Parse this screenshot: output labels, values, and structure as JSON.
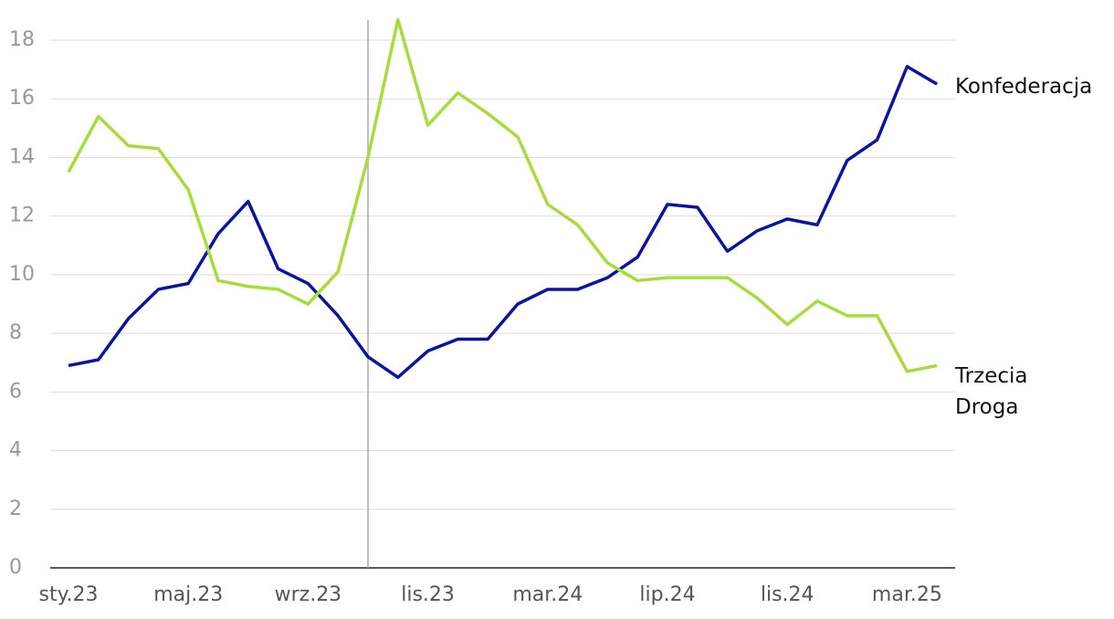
{
  "chart_data": {
    "type": "line",
    "categories": [
      "sty.23",
      null,
      null,
      null,
      "maj.23",
      null,
      null,
      null,
      "wrz.23",
      null,
      null,
      null,
      "lis.23",
      null,
      null,
      null,
      "mar.24",
      null,
      null,
      null,
      "lip.24",
      null,
      null,
      null,
      "lis.24",
      null,
      null,
      null,
      "mar.25",
      null
    ],
    "series": [
      {
        "name": "Konfederacja",
        "color": "#0a14a0",
        "values": [
          6.9,
          7.1,
          8.5,
          9.5,
          9.7,
          11.4,
          12.5,
          10.2,
          9.7,
          8.6,
          7.2,
          6.5,
          7.4,
          7.8,
          7.8,
          9.0,
          9.5,
          9.5,
          9.9,
          10.6,
          12.4,
          12.3,
          10.8,
          11.5,
          11.9,
          11.7,
          13.9,
          14.6,
          17.1,
          16.5
        ]
      },
      {
        "name": "Trzecia Droga",
        "color": "#a8dc3c",
        "values": [
          13.5,
          15.4,
          14.4,
          14.3,
          12.9,
          9.8,
          9.6,
          9.5,
          9.0,
          10.1,
          14.0,
          18.7,
          15.1,
          16.2,
          15.5,
          14.7,
          12.4,
          11.7,
          10.4,
          9.8,
          9.9,
          9.9,
          9.9,
          9.2,
          8.3,
          9.1,
          8.6,
          8.6,
          6.7,
          6.9
        ]
      }
    ],
    "ylim": [
      0,
      18
    ],
    "yticks": [
      0,
      2,
      4,
      6,
      8,
      10,
      12,
      14,
      16,
      18
    ],
    "grid": true,
    "vline": 10
  }
}
